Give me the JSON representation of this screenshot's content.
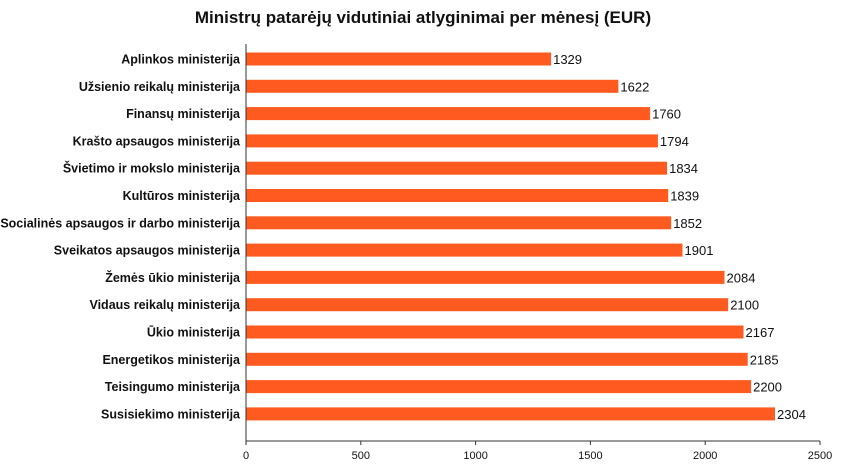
{
  "chart_data": {
    "type": "bar",
    "orientation": "horizontal",
    "title": "Ministrų patarėjų vidutiniai atlyginimai per mėnesį (EUR)",
    "xlabel": "",
    "ylabel": "",
    "categories": [
      "Aplinkos ministerija",
      "Užsienio reikalų ministerija",
      "Finansų ministerija",
      "Krašto apsaugos ministerija",
      "Švietimo ir mokslo ministerija",
      "Kultūros ministerija",
      "Socialinės apsaugos ir darbo ministerija",
      "Sveikatos apsaugos ministerija",
      "Žemės ūkio ministerija",
      "Vidaus reikalų ministerija",
      "Ūkio ministerija",
      "Energetikos ministerija",
      "Teisingumo ministerija",
      "Susisiekimo ministerija"
    ],
    "values": [
      1329,
      1622,
      1760,
      1794,
      1834,
      1839,
      1852,
      1901,
      2084,
      2100,
      2167,
      2185,
      2200,
      2304
    ],
    "xlim": [
      0,
      2500
    ],
    "xticks": [
      0,
      500,
      1000,
      1500,
      2000,
      2500
    ],
    "bar_color": "#ff5a1f",
    "grid": false,
    "legend": "none",
    "data_labels": true
  }
}
